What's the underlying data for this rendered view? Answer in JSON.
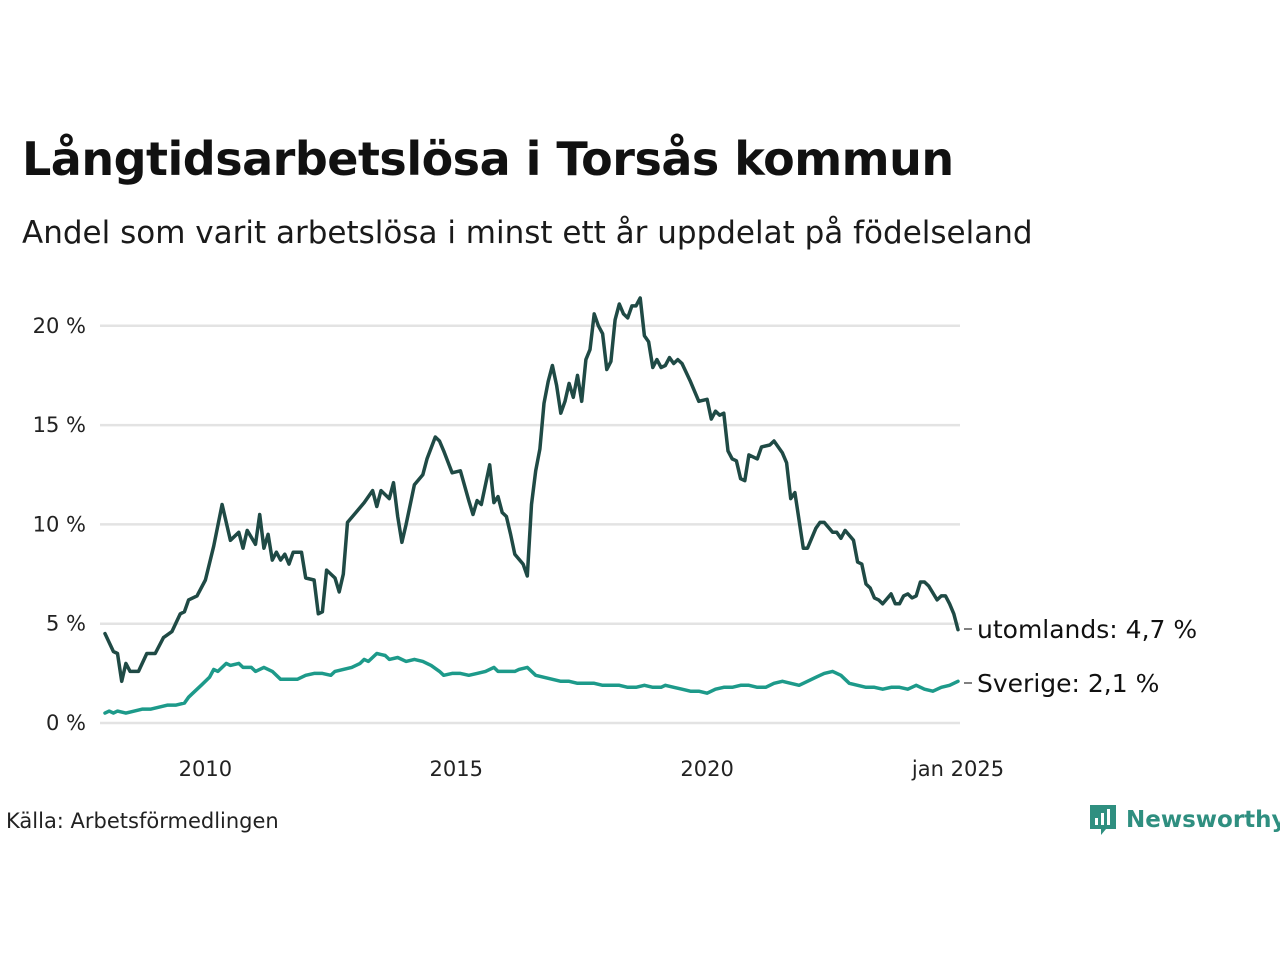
{
  "title": "Långtidsarbetslösa i Torsås kommun",
  "subtitle": "Andel som varit arbetslösa i minst ett år uppdelat på födelseland",
  "source": "Källa: Arbetsförmedlingen",
  "brand": {
    "name": "Newsworthy",
    "icon": "newsworthy-logo-icon",
    "color": "#2f8f80"
  },
  "chart_data": {
    "type": "line",
    "title": "Långtidsarbetslösa i Torsås kommun",
    "subtitle": "Andel som varit arbetslösa i minst ett år uppdelat på födelseland",
    "x_range": [
      "2008-01",
      "2025-01"
    ],
    "x_ticks": [
      {
        "date": "2010-01",
        "label": "2010"
      },
      {
        "date": "2015-01",
        "label": "2015"
      },
      {
        "date": "2020-01",
        "label": "2020"
      },
      {
        "date": "2025-01",
        "label": "jan 2025"
      }
    ],
    "y_range": [
      0,
      21.5
    ],
    "y_ticks": [
      {
        "value": 0,
        "label": "0 %"
      },
      {
        "value": 5,
        "label": "5 %"
      },
      {
        "value": 10,
        "label": "10 %"
      },
      {
        "value": 15,
        "label": "15 %"
      },
      {
        "value": 20,
        "label": "20 %"
      }
    ],
    "grid": "horizontal",
    "legend": "end-of-line labels",
    "series": [
      {
        "name": "utomlands",
        "end_label": "utomlands: 4,7 %",
        "color": "#1f4a45",
        "points": [
          [
            "2008-01",
            4.5
          ],
          [
            "2008-03",
            3.6
          ],
          [
            "2008-04",
            3.5
          ],
          [
            "2008-05",
            2.1
          ],
          [
            "2008-06",
            3.0
          ],
          [
            "2008-07",
            2.6
          ],
          [
            "2008-09",
            2.6
          ],
          [
            "2008-11",
            3.5
          ],
          [
            "2009-01",
            3.5
          ],
          [
            "2009-03",
            4.3
          ],
          [
            "2009-05",
            4.6
          ],
          [
            "2009-07",
            5.5
          ],
          [
            "2009-08",
            5.6
          ],
          [
            "2009-09",
            6.2
          ],
          [
            "2009-11",
            6.4
          ],
          [
            "2010-01",
            7.2
          ],
          [
            "2010-03",
            8.9
          ],
          [
            "2010-05",
            11.0
          ],
          [
            "2010-07",
            9.2
          ],
          [
            "2010-09",
            9.6
          ],
          [
            "2010-10",
            8.8
          ],
          [
            "2010-11",
            9.7
          ],
          [
            "2011-01",
            9.0
          ],
          [
            "2011-02",
            10.5
          ],
          [
            "2011-03",
            8.8
          ],
          [
            "2011-04",
            9.5
          ],
          [
            "2011-05",
            8.2
          ],
          [
            "2011-06",
            8.6
          ],
          [
            "2011-07",
            8.2
          ],
          [
            "2011-08",
            8.5
          ],
          [
            "2011-09",
            8.0
          ],
          [
            "2011-10",
            8.6
          ],
          [
            "2011-12",
            8.6
          ],
          [
            "2012-01",
            7.3
          ],
          [
            "2012-03",
            7.2
          ],
          [
            "2012-04",
            5.5
          ],
          [
            "2012-05",
            5.6
          ],
          [
            "2012-06",
            7.7
          ],
          [
            "2012-08",
            7.3
          ],
          [
            "2012-09",
            6.6
          ],
          [
            "2012-10",
            7.5
          ],
          [
            "2012-11",
            10.1
          ],
          [
            "2013-01",
            10.6
          ],
          [
            "2013-03",
            11.1
          ],
          [
            "2013-05",
            11.7
          ],
          [
            "2013-06",
            10.9
          ],
          [
            "2013-07",
            11.7
          ],
          [
            "2013-09",
            11.3
          ],
          [
            "2013-10",
            12.1
          ],
          [
            "2013-11",
            10.4
          ],
          [
            "2013-12",
            9.1
          ],
          [
            "2014-01",
            10.0
          ],
          [
            "2014-03",
            12.0
          ],
          [
            "2014-05",
            12.5
          ],
          [
            "2014-06",
            13.3
          ],
          [
            "2014-08",
            14.4
          ],
          [
            "2014-09",
            14.2
          ],
          [
            "2014-10",
            13.7
          ],
          [
            "2014-12",
            12.6
          ],
          [
            "2015-02",
            12.7
          ],
          [
            "2015-04",
            11.2
          ],
          [
            "2015-05",
            10.5
          ],
          [
            "2015-06",
            11.2
          ],
          [
            "2015-07",
            11.0
          ],
          [
            "2015-09",
            13.0
          ],
          [
            "2015-10",
            11.1
          ],
          [
            "2015-11",
            11.4
          ],
          [
            "2015-12",
            10.6
          ],
          [
            "2016-01",
            10.4
          ],
          [
            "2016-02",
            9.5
          ],
          [
            "2016-03",
            8.5
          ],
          [
            "2016-05",
            8.0
          ],
          [
            "2016-06",
            7.4
          ],
          [
            "2016-07",
            11.0
          ],
          [
            "2016-08",
            12.7
          ],
          [
            "2016-09",
            13.8
          ],
          [
            "2016-10",
            16.1
          ],
          [
            "2016-11",
            17.2
          ],
          [
            "2016-12",
            18.0
          ],
          [
            "2017-01",
            17.0
          ],
          [
            "2017-02",
            15.6
          ],
          [
            "2017-03",
            16.2
          ],
          [
            "2017-04",
            17.1
          ],
          [
            "2017-05",
            16.4
          ],
          [
            "2017-06",
            17.5
          ],
          [
            "2017-07",
            16.2
          ],
          [
            "2017-08",
            18.3
          ],
          [
            "2017-09",
            18.8
          ],
          [
            "2017-10",
            20.6
          ],
          [
            "2017-11",
            20.0
          ],
          [
            "2017-12",
            19.6
          ],
          [
            "2018-01",
            17.8
          ],
          [
            "2018-02",
            18.2
          ],
          [
            "2018-03",
            20.3
          ],
          [
            "2018-04",
            21.1
          ],
          [
            "2018-05",
            20.6
          ],
          [
            "2018-06",
            20.4
          ],
          [
            "2018-07",
            21.0
          ],
          [
            "2018-08",
            21.0
          ],
          [
            "2018-09",
            21.4
          ],
          [
            "2018-10",
            19.5
          ],
          [
            "2018-11",
            19.2
          ],
          [
            "2018-12",
            17.9
          ],
          [
            "2019-01",
            18.3
          ],
          [
            "2019-02",
            17.9
          ],
          [
            "2019-03",
            18.0
          ],
          [
            "2019-04",
            18.4
          ],
          [
            "2019-05",
            18.1
          ],
          [
            "2019-06",
            18.3
          ],
          [
            "2019-07",
            18.1
          ],
          [
            "2019-09",
            17.2
          ],
          [
            "2019-11",
            16.2
          ],
          [
            "2020-01",
            16.3
          ],
          [
            "2020-02",
            15.3
          ],
          [
            "2020-03",
            15.7
          ],
          [
            "2020-04",
            15.5
          ],
          [
            "2020-05",
            15.6
          ],
          [
            "2020-06",
            13.7
          ],
          [
            "2020-07",
            13.3
          ],
          [
            "2020-08",
            13.2
          ],
          [
            "2020-09",
            12.3
          ],
          [
            "2020-10",
            12.2
          ],
          [
            "2020-11",
            13.5
          ],
          [
            "2021-01",
            13.3
          ],
          [
            "2021-02",
            13.9
          ],
          [
            "2021-04",
            14.0
          ],
          [
            "2021-05",
            14.2
          ],
          [
            "2021-07",
            13.6
          ],
          [
            "2021-08",
            13.1
          ],
          [
            "2021-09",
            11.3
          ],
          [
            "2021-10",
            11.6
          ],
          [
            "2021-12",
            8.8
          ],
          [
            "2022-01",
            8.8
          ],
          [
            "2022-03",
            9.8
          ],
          [
            "2022-04",
            10.1
          ],
          [
            "2022-05",
            10.1
          ],
          [
            "2022-07",
            9.6
          ],
          [
            "2022-08",
            9.6
          ],
          [
            "2022-09",
            9.3
          ],
          [
            "2022-10",
            9.7
          ],
          [
            "2022-12",
            9.2
          ],
          [
            "2023-01",
            8.1
          ],
          [
            "2023-02",
            8.0
          ],
          [
            "2023-03",
            7.0
          ],
          [
            "2023-04",
            6.8
          ],
          [
            "2023-05",
            6.3
          ],
          [
            "2023-06",
            6.2
          ],
          [
            "2023-07",
            6.0
          ],
          [
            "2023-09",
            6.5
          ],
          [
            "2023-10",
            6.0
          ],
          [
            "2023-11",
            6.0
          ],
          [
            "2023-12",
            6.4
          ],
          [
            "2024-01",
            6.5
          ],
          [
            "2024-02",
            6.3
          ],
          [
            "2024-03",
            6.4
          ],
          [
            "2024-04",
            7.1
          ],
          [
            "2024-05",
            7.1
          ],
          [
            "2024-06",
            6.9
          ],
          [
            "2024-08",
            6.2
          ],
          [
            "2024-09",
            6.4
          ],
          [
            "2024-10",
            6.4
          ],
          [
            "2024-11",
            6.0
          ],
          [
            "2024-12",
            5.5
          ],
          [
            "2025-01",
            4.7
          ]
        ]
      },
      {
        "name": "Sverige",
        "end_label": "Sverige: 2,1 %",
        "color": "#1d9a8a",
        "points": [
          [
            "2008-01",
            0.5
          ],
          [
            "2008-02",
            0.6
          ],
          [
            "2008-03",
            0.5
          ],
          [
            "2008-04",
            0.6
          ],
          [
            "2008-06",
            0.5
          ],
          [
            "2008-08",
            0.6
          ],
          [
            "2008-10",
            0.7
          ],
          [
            "2008-12",
            0.7
          ],
          [
            "2009-02",
            0.8
          ],
          [
            "2009-04",
            0.9
          ],
          [
            "2009-06",
            0.9
          ],
          [
            "2009-08",
            1.0
          ],
          [
            "2009-09",
            1.3
          ],
          [
            "2009-10",
            1.5
          ],
          [
            "2009-12",
            1.9
          ],
          [
            "2010-02",
            2.3
          ],
          [
            "2010-03",
            2.7
          ],
          [
            "2010-04",
            2.6
          ],
          [
            "2010-06",
            3.0
          ],
          [
            "2010-07",
            2.9
          ],
          [
            "2010-09",
            3.0
          ],
          [
            "2010-10",
            2.8
          ],
          [
            "2010-12",
            2.8
          ],
          [
            "2011-01",
            2.6
          ],
          [
            "2011-03",
            2.8
          ],
          [
            "2011-05",
            2.6
          ],
          [
            "2011-07",
            2.2
          ],
          [
            "2011-09",
            2.2
          ],
          [
            "2011-11",
            2.2
          ],
          [
            "2012-01",
            2.4
          ],
          [
            "2012-03",
            2.5
          ],
          [
            "2012-05",
            2.5
          ],
          [
            "2012-07",
            2.4
          ],
          [
            "2012-08",
            2.6
          ],
          [
            "2012-10",
            2.7
          ],
          [
            "2012-12",
            2.8
          ],
          [
            "2013-02",
            3.0
          ],
          [
            "2013-03",
            3.2
          ],
          [
            "2013-04",
            3.1
          ],
          [
            "2013-06",
            3.5
          ],
          [
            "2013-08",
            3.4
          ],
          [
            "2013-09",
            3.2
          ],
          [
            "2013-11",
            3.3
          ],
          [
            "2014-01",
            3.1
          ],
          [
            "2014-03",
            3.2
          ],
          [
            "2014-05",
            3.1
          ],
          [
            "2014-07",
            2.9
          ],
          [
            "2014-09",
            2.6
          ],
          [
            "2014-10",
            2.4
          ],
          [
            "2014-12",
            2.5
          ],
          [
            "2015-02",
            2.5
          ],
          [
            "2015-04",
            2.4
          ],
          [
            "2015-06",
            2.5
          ],
          [
            "2015-08",
            2.6
          ],
          [
            "2015-10",
            2.8
          ],
          [
            "2015-11",
            2.6
          ],
          [
            "2016-01",
            2.6
          ],
          [
            "2016-03",
            2.6
          ],
          [
            "2016-04",
            2.7
          ],
          [
            "2016-06",
            2.8
          ],
          [
            "2016-08",
            2.4
          ],
          [
            "2016-10",
            2.3
          ],
          [
            "2016-12",
            2.2
          ],
          [
            "2017-02",
            2.1
          ],
          [
            "2017-04",
            2.1
          ],
          [
            "2017-06",
            2.0
          ],
          [
            "2017-08",
            2.0
          ],
          [
            "2017-10",
            2.0
          ],
          [
            "2017-12",
            1.9
          ],
          [
            "2018-02",
            1.9
          ],
          [
            "2018-04",
            1.9
          ],
          [
            "2018-06",
            1.8
          ],
          [
            "2018-08",
            1.8
          ],
          [
            "2018-10",
            1.9
          ],
          [
            "2018-12",
            1.8
          ],
          [
            "2019-02",
            1.8
          ],
          [
            "2019-03",
            1.9
          ],
          [
            "2019-05",
            1.8
          ],
          [
            "2019-07",
            1.7
          ],
          [
            "2019-09",
            1.6
          ],
          [
            "2019-11",
            1.6
          ],
          [
            "2020-01",
            1.5
          ],
          [
            "2020-03",
            1.7
          ],
          [
            "2020-05",
            1.8
          ],
          [
            "2020-07",
            1.8
          ],
          [
            "2020-09",
            1.9
          ],
          [
            "2020-11",
            1.9
          ],
          [
            "2021-01",
            1.8
          ],
          [
            "2021-03",
            1.8
          ],
          [
            "2021-05",
            2.0
          ],
          [
            "2021-07",
            2.1
          ],
          [
            "2021-09",
            2.0
          ],
          [
            "2021-11",
            1.9
          ],
          [
            "2022-01",
            2.1
          ],
          [
            "2022-03",
            2.3
          ],
          [
            "2022-05",
            2.5
          ],
          [
            "2022-07",
            2.6
          ],
          [
            "2022-09",
            2.4
          ],
          [
            "2022-11",
            2.0
          ],
          [
            "2023-01",
            1.9
          ],
          [
            "2023-03",
            1.8
          ],
          [
            "2023-05",
            1.8
          ],
          [
            "2023-07",
            1.7
          ],
          [
            "2023-09",
            1.8
          ],
          [
            "2023-11",
            1.8
          ],
          [
            "2024-01",
            1.7
          ],
          [
            "2024-03",
            1.9
          ],
          [
            "2024-05",
            1.7
          ],
          [
            "2024-07",
            1.6
          ],
          [
            "2024-09",
            1.8
          ],
          [
            "2024-11",
            1.9
          ],
          [
            "2024-12",
            2.0
          ],
          [
            "2025-01",
            2.1
          ]
        ]
      }
    ]
  }
}
